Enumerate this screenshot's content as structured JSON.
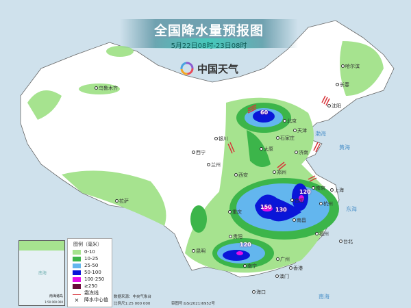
{
  "header": {
    "title": "全国降水量预报图",
    "subtitle": "5月22日08时-23日08时",
    "brand": "中国天气"
  },
  "colors": {
    "ocean": "#cfe1ec",
    "land": "#ffffff",
    "r0_10": "#a6e38f",
    "r10_25": "#3cb54a",
    "r25_50": "#63b6ee",
    "r50_100": "#0a16d8",
    "r100_250": "#e60fe6",
    "r250": "#6b0b3a",
    "frost": "#d8343a"
  },
  "cities": [
    "乌鲁木齐",
    "哈尔滨",
    "长春",
    "沈阳",
    "北京",
    "天津",
    "石家庄",
    "太原",
    "济南",
    "银川",
    "西宁",
    "兰州",
    "西安",
    "郑州",
    "南京",
    "上海",
    "杭州",
    "合肥",
    "南昌",
    "福州",
    "重庆",
    "贵阳",
    "昆明",
    "南宁",
    "广州",
    "香港",
    "澳门",
    "海口",
    "台北",
    "拉萨"
  ],
  "seas": [
    "渤海",
    "黄海",
    "东海",
    "南海"
  ],
  "rain_centers": [
    "60",
    "150",
    "130",
    "120",
    "120"
  ],
  "legend": {
    "title": "图例（毫米）",
    "items": [
      {
        "label": "0-10",
        "color": "#a6e38f"
      },
      {
        "label": "10-25",
        "color": "#3cb54a"
      },
      {
        "label": "25-50",
        "color": "#63b6ee"
      },
      {
        "label": "50-100",
        "color": "#0a16d8"
      },
      {
        "label": "100-250",
        "color": "#e60fe6"
      },
      {
        "label": "≥250",
        "color": "#6b0b3a"
      }
    ],
    "frost_line": "霜冻线",
    "center_value": "降水中心值"
  },
  "inset": {
    "label": "南海诸岛",
    "scale": "1:50 000 000",
    "sea": "南海"
  },
  "footer": {
    "source": "数据来源：中央气象台",
    "scale": "比例尺1:25 000 000",
    "approval": "审图号:GS(2021)6952号"
  }
}
